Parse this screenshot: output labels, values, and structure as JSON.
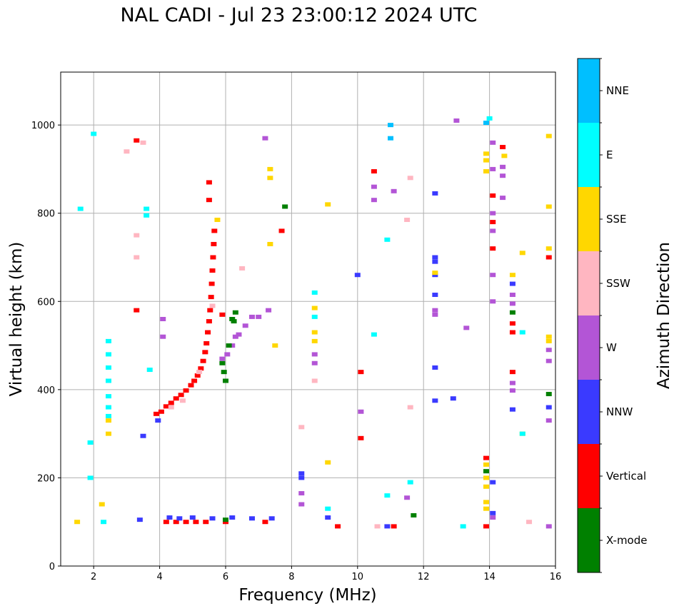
{
  "chart_data": {
    "type": "scatter",
    "title": "NAL CADI - Jul 23 23:00:12 2024 UTC",
    "xlabel": "Frequency (MHz)",
    "ylabel": "Virtual height (km)",
    "xlim": [
      1,
      16
    ],
    "ylim": [
      0,
      1120
    ],
    "xticks": [
      2,
      4,
      6,
      8,
      10,
      12,
      14,
      16
    ],
    "yticks": [
      0,
      200,
      400,
      600,
      800,
      1000
    ],
    "grid": true,
    "colorbar": {
      "title": "Azimuth Direction",
      "categories": [
        {
          "label": "X-mode",
          "color": "#008000"
        },
        {
          "label": "Vertical",
          "color": "#ff0000"
        },
        {
          "label": "NNW",
          "color": "#3a3aff"
        },
        {
          "label": "W",
          "color": "#b355d6"
        },
        {
          "label": "SSW",
          "color": "#ffb6c1"
        },
        {
          "label": "SSE",
          "color": "#ffd700"
        },
        {
          "label": "E",
          "color": "#00ffff"
        },
        {
          "label": "NNE",
          "color": "#00bfff"
        }
      ]
    },
    "series": [
      {
        "name": "Vertical",
        "points": [
          [
            3.9,
            345
          ],
          [
            4.05,
            350
          ],
          [
            4.2,
            362
          ],
          [
            4.35,
            370
          ],
          [
            4.5,
            380
          ],
          [
            4.65,
            388
          ],
          [
            4.8,
            398
          ],
          [
            4.95,
            410
          ],
          [
            5.05,
            420
          ],
          [
            5.15,
            432
          ],
          [
            5.25,
            448
          ],
          [
            5.32,
            465
          ],
          [
            5.38,
            485
          ],
          [
            5.42,
            505
          ],
          [
            5.46,
            530
          ],
          [
            5.5,
            555
          ],
          [
            5.53,
            580
          ],
          [
            5.56,
            610
          ],
          [
            5.58,
            640
          ],
          [
            5.6,
            670
          ],
          [
            5.62,
            700
          ],
          [
            5.64,
            730
          ],
          [
            5.66,
            760
          ],
          [
            5.5,
            830
          ],
          [
            5.5,
            870
          ],
          [
            3.3,
            965
          ],
          [
            3.3,
            580
          ],
          [
            7.7,
            760
          ],
          [
            5.9,
            570
          ],
          [
            4.2,
            100
          ],
          [
            4.5,
            100
          ],
          [
            4.8,
            100
          ],
          [
            5.1,
            100
          ],
          [
            5.4,
            100
          ],
          [
            6.0,
            100
          ],
          [
            7.2,
            100
          ],
          [
            10.5,
            895
          ],
          [
            10.1,
            440
          ],
          [
            10.1,
            290
          ],
          [
            14.1,
            840
          ],
          [
            14.1,
            780
          ],
          [
            14.1,
            720
          ],
          [
            14.4,
            950
          ],
          [
            14.7,
            550
          ],
          [
            14.7,
            530
          ],
          [
            14.7,
            440
          ],
          [
            15.8,
            700
          ],
          [
            13.9,
            245
          ],
          [
            13.9,
            90
          ],
          [
            11.1,
            90
          ],
          [
            9.4,
            90
          ]
        ]
      },
      {
        "name": "NNW",
        "points": [
          [
            4.3,
            110
          ],
          [
            4.6,
            108
          ],
          [
            5.0,
            110
          ],
          [
            5.6,
            108
          ],
          [
            6.2,
            110
          ],
          [
            6.8,
            108
          ],
          [
            7.4,
            108
          ],
          [
            3.4,
            105
          ],
          [
            3.95,
            330
          ],
          [
            3.5,
            295
          ],
          [
            8.3,
            210
          ],
          [
            8.3,
            200
          ],
          [
            12.35,
            845
          ],
          [
            12.35,
            700
          ],
          [
            12.35,
            690
          ],
          [
            12.35,
            660
          ],
          [
            12.35,
            615
          ],
          [
            12.35,
            450
          ],
          [
            12.35,
            375
          ],
          [
            12.9,
            380
          ],
          [
            14.7,
            640
          ],
          [
            14.7,
            355
          ],
          [
            15.8,
            360
          ],
          [
            10.0,
            660
          ],
          [
            9.1,
            110
          ],
          [
            10.9,
            90
          ],
          [
            14.1,
            190
          ],
          [
            14.1,
            120
          ]
        ]
      },
      {
        "name": "W",
        "points": [
          [
            5.9,
            470
          ],
          [
            6.05,
            480
          ],
          [
            6.2,
            500
          ],
          [
            6.4,
            525
          ],
          [
            6.6,
            545
          ],
          [
            6.8,
            565
          ],
          [
            7.0,
            565
          ],
          [
            6.3,
            520
          ],
          [
            4.1,
            560
          ],
          [
            4.1,
            520
          ],
          [
            7.2,
            970
          ],
          [
            7.3,
            580
          ],
          [
            8.7,
            480
          ],
          [
            8.7,
            460
          ],
          [
            8.3,
            165
          ],
          [
            10.1,
            350
          ],
          [
            10.5,
            860
          ],
          [
            10.5,
            830
          ],
          [
            11.1,
            850
          ],
          [
            12.35,
            580
          ],
          [
            12.35,
            570
          ],
          [
            13.3,
            540
          ],
          [
            13.0,
            1010
          ],
          [
            14.1,
            960
          ],
          [
            14.1,
            900
          ],
          [
            14.1,
            800
          ],
          [
            14.1,
            760
          ],
          [
            14.1,
            660
          ],
          [
            14.1,
            600
          ],
          [
            14.4,
            905
          ],
          [
            14.4,
            885
          ],
          [
            14.4,
            835
          ],
          [
            14.7,
            615
          ],
          [
            14.7,
            595
          ],
          [
            14.7,
            415
          ],
          [
            14.7,
            398
          ],
          [
            15.8,
            490
          ],
          [
            15.8,
            465
          ],
          [
            15.8,
            330
          ],
          [
            8.3,
            140
          ],
          [
            11.5,
            155
          ],
          [
            15.8,
            90
          ],
          [
            14.1,
            110
          ]
        ]
      },
      {
        "name": "SSW",
        "points": [
          [
            4.35,
            360
          ],
          [
            4.7,
            375
          ],
          [
            5.2,
            440
          ],
          [
            5.6,
            590
          ],
          [
            3.3,
            700
          ],
          [
            3.3,
            750
          ],
          [
            6.5,
            675
          ],
          [
            8.7,
            420
          ],
          [
            8.3,
            315
          ],
          [
            11.6,
            880
          ],
          [
            11.5,
            785
          ],
          [
            11.6,
            360
          ],
          [
            10.6,
            90
          ],
          [
            15.2,
            100
          ],
          [
            3.5,
            960
          ],
          [
            3.0,
            940
          ]
        ]
      },
      {
        "name": "SSE",
        "points": [
          [
            2.45,
            330
          ],
          [
            2.45,
            300
          ],
          [
            2.25,
            140
          ],
          [
            5.75,
            785
          ],
          [
            7.35,
            900
          ],
          [
            7.35,
            880
          ],
          [
            7.35,
            730
          ],
          [
            7.5,
            500
          ],
          [
            8.7,
            585
          ],
          [
            8.7,
            530
          ],
          [
            8.7,
            510
          ],
          [
            9.1,
            820
          ],
          [
            9.1,
            235
          ],
          [
            12.35,
            665
          ],
          [
            13.9,
            935
          ],
          [
            13.9,
            920
          ],
          [
            13.9,
            895
          ],
          [
            13.9,
            230
          ],
          [
            13.9,
            200
          ],
          [
            13.9,
            180
          ],
          [
            13.9,
            145
          ],
          [
            13.9,
            130
          ],
          [
            14.45,
            930
          ],
          [
            14.7,
            660
          ],
          [
            15.0,
            710
          ],
          [
            15.0,
            300
          ],
          [
            15.8,
            975
          ],
          [
            15.8,
            815
          ],
          [
            15.8,
            720
          ],
          [
            15.8,
            520
          ],
          [
            15.8,
            510
          ],
          [
            1.5,
            100
          ]
        ]
      },
      {
        "name": "E",
        "points": [
          [
            2.45,
            510
          ],
          [
            2.45,
            480
          ],
          [
            2.45,
            450
          ],
          [
            2.45,
            420
          ],
          [
            2.45,
            385
          ],
          [
            2.45,
            360
          ],
          [
            2.45,
            340
          ],
          [
            3.6,
            810
          ],
          [
            3.6,
            795
          ],
          [
            3.7,
            445
          ],
          [
            2.3,
            100
          ],
          [
            1.9,
            200
          ],
          [
            1.9,
            280
          ],
          [
            1.6,
            810
          ],
          [
            2.0,
            980
          ],
          [
            8.7,
            620
          ],
          [
            8.7,
            565
          ],
          [
            10.5,
            525
          ],
          [
            10.9,
            740
          ],
          [
            13.2,
            90
          ],
          [
            15.0,
            530
          ],
          [
            15.0,
            300
          ],
          [
            9.1,
            130
          ],
          [
            11.6,
            190
          ],
          [
            10.9,
            160
          ],
          [
            14.0,
            1015
          ]
        ]
      },
      {
        "name": "NNE",
        "points": [
          [
            11.0,
            1000
          ],
          [
            11.0,
            970
          ],
          [
            13.9,
            1005
          ]
        ]
      },
      {
        "name": "X-mode",
        "points": [
          [
            5.9,
            460
          ],
          [
            5.95,
            440
          ],
          [
            6.0,
            420
          ],
          [
            6.1,
            500
          ],
          [
            6.2,
            560
          ],
          [
            6.25,
            555
          ],
          [
            6.3,
            575
          ],
          [
            14.7,
            575
          ],
          [
            15.8,
            390
          ],
          [
            11.7,
            115
          ],
          [
            13.9,
            215
          ],
          [
            7.8,
            815
          ],
          [
            6.0,
            105
          ]
        ]
      }
    ]
  }
}
